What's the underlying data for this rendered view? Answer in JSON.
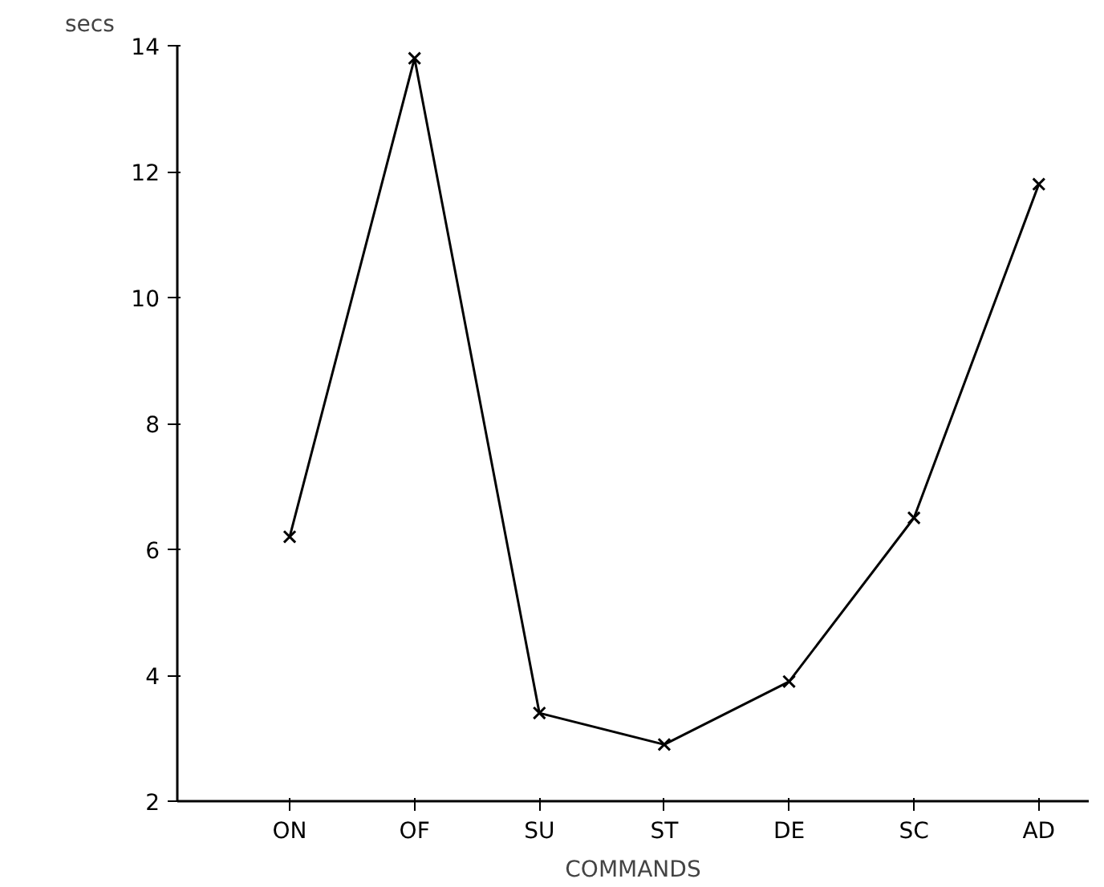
{
  "chart_data": {
    "type": "line",
    "xlabel": "COMMANDS",
    "ylabel": "secs",
    "categories": [
      "ON",
      "OF",
      "SU",
      "ST",
      "DE",
      "SC",
      "AD"
    ],
    "series": [
      {
        "color": "#000000",
        "values": [
          6.2,
          13.8,
          3.4,
          2.9,
          3.9,
          6.5,
          11.8
        ]
      }
    ],
    "ylim": [
      2,
      14
    ],
    "yticks": [
      2,
      4,
      6,
      8,
      10,
      12,
      14
    ],
    "grid": false,
    "marker": "cross",
    "line_style": "solid"
  }
}
